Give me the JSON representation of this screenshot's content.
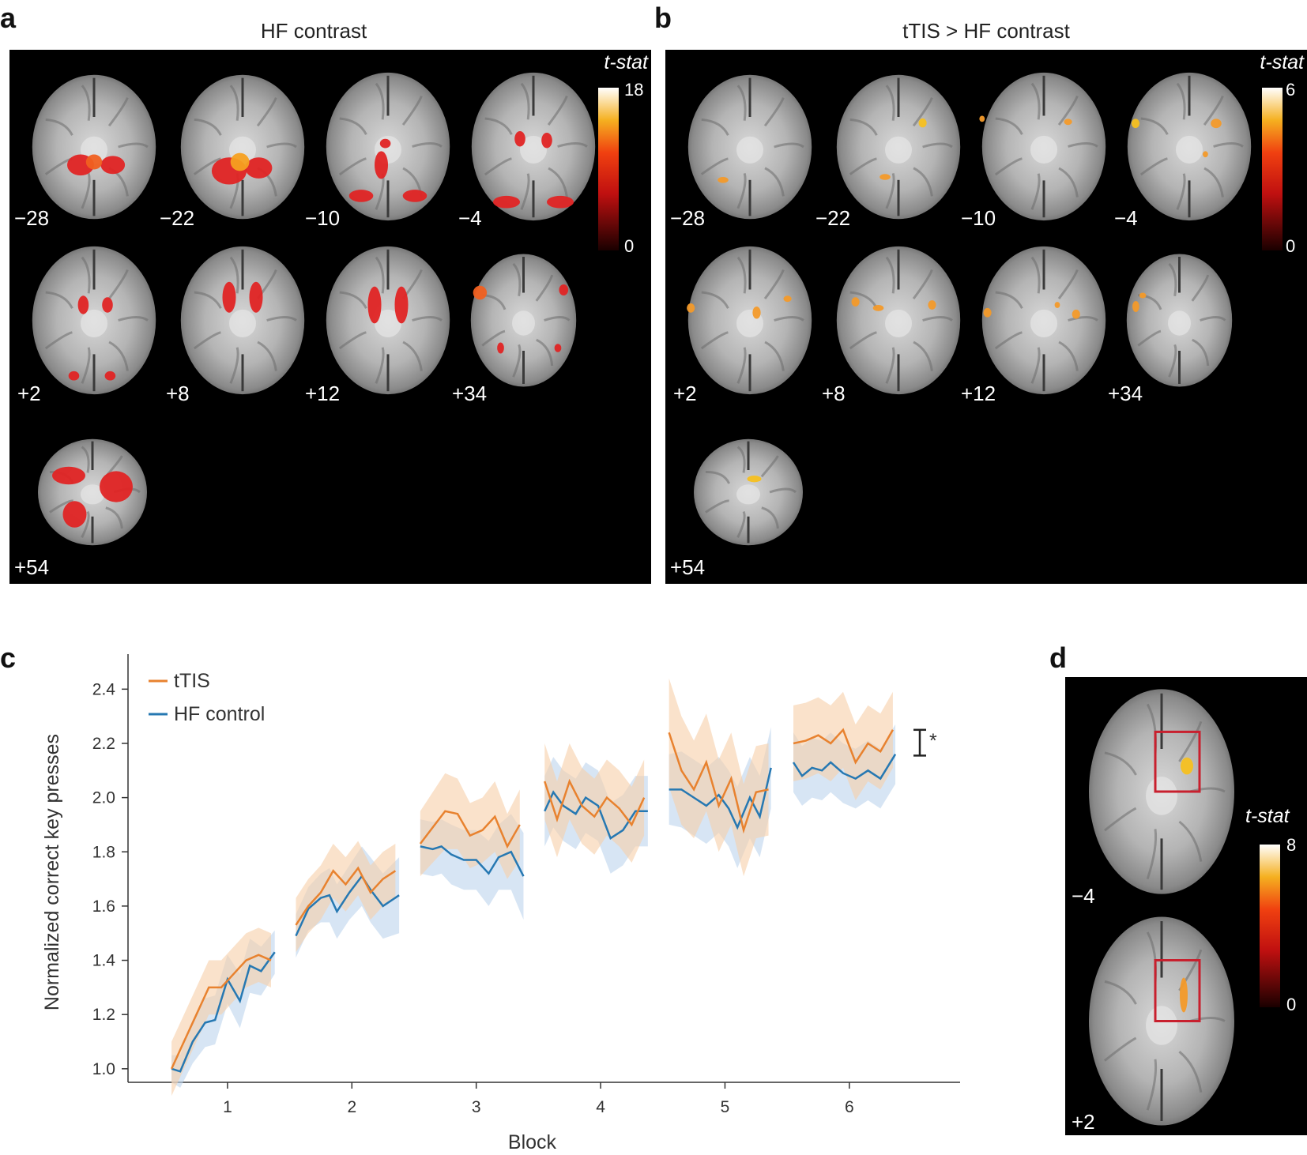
{
  "panels": {
    "a": {
      "letter": "a",
      "title": "HF contrast",
      "tstat_label": "t-stat",
      "colorbar": {
        "max": "18",
        "min": "0"
      },
      "slices": [
        {
          "label": "−28"
        },
        {
          "label": "−22"
        },
        {
          "label": "−10"
        },
        {
          "label": "−4"
        },
        {
          "label": "+2"
        },
        {
          "label": "+8"
        },
        {
          "label": "+12"
        },
        {
          "label": "+34"
        },
        {
          "label": "+54"
        }
      ]
    },
    "b": {
      "letter": "b",
      "title": "tTIS > HF contrast",
      "tstat_label": "t-stat",
      "colorbar": {
        "max": "6",
        "min": "0"
      },
      "slices": [
        {
          "label": "−28"
        },
        {
          "label": "−22"
        },
        {
          "label": "−10"
        },
        {
          "label": "−4"
        },
        {
          "label": "+2"
        },
        {
          "label": "+8"
        },
        {
          "label": "+12"
        },
        {
          "label": "+34"
        },
        {
          "label": "+54"
        }
      ]
    },
    "c": {
      "letter": "c"
    },
    "d": {
      "letter": "d",
      "tstat_label": "t-stat",
      "colorbar": {
        "max": "8",
        "min": "0"
      },
      "slices": [
        {
          "label": "−4"
        },
        {
          "label": "+2"
        }
      ]
    }
  },
  "colors": {
    "ttis": "#e8822f",
    "hf": "#2678b2",
    "ttis_band": "#f6cfa8",
    "hf_band": "#bcd3ec",
    "roi_box": "#c8202e"
  },
  "chart_data": {
    "type": "line",
    "xlabel": "Block",
    "ylabel": "Normalized correct key presses",
    "ylim": [
      0.95,
      2.5
    ],
    "yticks": [
      "1.0",
      "1.2",
      "1.4",
      "1.6",
      "1.8",
      "2.0",
      "2.2",
      "2.4"
    ],
    "xticks": [
      "1",
      "2",
      "3",
      "4",
      "5",
      "6"
    ],
    "legend": {
      "position": "top-left"
    },
    "significance": "*",
    "blocks": [
      {
        "block": 1,
        "x": [
          0.55,
          0.65,
          0.75,
          0.85,
          0.95,
          1.05,
          1.15,
          1.25,
          1.35
        ],
        "tTIS": [
          1.0,
          1.1,
          1.2,
          1.3,
          1.3,
          1.35,
          1.4,
          1.42,
          1.4
        ],
        "HF control": [
          1.0,
          0.99,
          1.1,
          1.17,
          1.18,
          1.33,
          1.25,
          1.38,
          1.36,
          1.43
        ],
        "hf_x": [
          0.55,
          0.62,
          0.72,
          0.82,
          0.9,
          1.0,
          1.1,
          1.18,
          1.27,
          1.38
        ],
        "ttis_band": [
          0.1,
          0.1,
          0.1,
          0.1,
          0.1,
          0.1,
          0.1,
          0.1,
          0.1
        ],
        "hf_band": [
          0.05,
          0.06,
          0.08,
          0.09,
          0.09,
          0.09,
          0.1,
          0.1,
          0.09,
          0.08
        ]
      },
      {
        "block": 2,
        "x": [
          1.55,
          1.65,
          1.75,
          1.85,
          1.95,
          2.05,
          2.15,
          2.25,
          2.35
        ],
        "tTIS": [
          1.53,
          1.6,
          1.65,
          1.73,
          1.68,
          1.74,
          1.65,
          1.7,
          1.73
        ],
        "HF control": [
          1.49,
          1.59,
          1.63,
          1.64,
          1.58,
          1.65,
          1.71,
          1.66,
          1.6,
          1.64
        ],
        "hf_x": [
          1.55,
          1.65,
          1.75,
          1.82,
          1.88,
          1.98,
          2.08,
          2.15,
          2.25,
          2.38
        ],
        "ttis_band": [
          0.1,
          0.1,
          0.1,
          0.1,
          0.1,
          0.1,
          0.1,
          0.1,
          0.1
        ],
        "hf_band": [
          0.08,
          0.08,
          0.09,
          0.1,
          0.1,
          0.1,
          0.11,
          0.12,
          0.12,
          0.14
        ]
      },
      {
        "block": 3,
        "x": [
          2.55,
          2.65,
          2.75,
          2.85,
          2.95,
          3.05,
          3.15,
          3.25,
          3.35
        ],
        "tTIS": [
          1.83,
          1.89,
          1.95,
          1.94,
          1.86,
          1.88,
          1.93,
          1.82,
          1.9
        ],
        "HF control": [
          1.82,
          1.81,
          1.82,
          1.79,
          1.77,
          1.77,
          1.72,
          1.78,
          1.8,
          1.71
        ],
        "hf_x": [
          2.55,
          2.65,
          2.72,
          2.8,
          2.9,
          3.0,
          3.1,
          3.18,
          3.28,
          3.38
        ],
        "ttis_band": [
          0.12,
          0.13,
          0.14,
          0.13,
          0.12,
          0.12,
          0.13,
          0.12,
          0.13
        ],
        "hf_band": [
          0.1,
          0.1,
          0.1,
          0.11,
          0.11,
          0.11,
          0.12,
          0.12,
          0.14,
          0.16
        ]
      },
      {
        "block": 4,
        "x": [
          3.55,
          3.65,
          3.75,
          3.85,
          3.95,
          4.05,
          4.15,
          4.25,
          4.35
        ],
        "tTIS": [
          2.06,
          1.92,
          2.06,
          1.97,
          1.93,
          2.0,
          1.96,
          1.9,
          2.0
        ],
        "HF control": [
          1.95,
          2.02,
          1.97,
          1.94,
          2.0,
          1.97,
          1.85,
          1.88,
          1.95,
          1.95
        ],
        "hf_x": [
          3.55,
          3.62,
          3.7,
          3.8,
          3.88,
          3.98,
          4.08,
          4.18,
          4.28,
          4.38
        ],
        "ttis_band": [
          0.14,
          0.14,
          0.14,
          0.14,
          0.14,
          0.14,
          0.14,
          0.14,
          0.14
        ],
        "hf_band": [
          0.13,
          0.13,
          0.13,
          0.13,
          0.13,
          0.13,
          0.13,
          0.13,
          0.13,
          0.13
        ]
      },
      {
        "block": 5,
        "x": [
          4.55,
          4.65,
          4.75,
          4.85,
          4.95,
          5.05,
          5.15,
          5.25,
          5.35
        ],
        "tTIS": [
          2.24,
          2.1,
          2.03,
          2.13,
          1.97,
          2.07,
          1.88,
          2.02,
          2.03
        ],
        "HF control": [
          2.03,
          2.03,
          2.0,
          1.97,
          2.01,
          1.96,
          1.89,
          2.0,
          1.93,
          2.11
        ],
        "hf_x": [
          4.55,
          4.65,
          4.75,
          4.85,
          4.95,
          5.03,
          5.1,
          5.2,
          5.28,
          5.37
        ],
        "ttis_band": [
          0.2,
          0.2,
          0.18,
          0.18,
          0.17,
          0.17,
          0.17,
          0.17,
          0.17
        ],
        "hf_band": [
          0.13,
          0.14,
          0.14,
          0.14,
          0.14,
          0.14,
          0.15,
          0.15,
          0.15,
          0.15
        ]
      },
      {
        "block": 6,
        "x": [
          5.55,
          5.65,
          5.75,
          5.85,
          5.95,
          6.05,
          6.15,
          6.25,
          6.35
        ],
        "tTIS": [
          2.2,
          2.21,
          2.23,
          2.2,
          2.25,
          2.13,
          2.2,
          2.17,
          2.25
        ],
        "HF control": [
          2.13,
          2.08,
          2.11,
          2.1,
          2.13,
          2.09,
          2.07,
          2.1,
          2.07,
          2.16
        ],
        "hf_x": [
          5.55,
          5.62,
          5.7,
          5.78,
          5.85,
          5.95,
          6.05,
          6.15,
          6.25,
          6.37
        ],
        "ttis_band": [
          0.14,
          0.14,
          0.14,
          0.14,
          0.14,
          0.14,
          0.14,
          0.14,
          0.14
        ],
        "hf_band": [
          0.11,
          0.11,
          0.11,
          0.11,
          0.11,
          0.11,
          0.11,
          0.11,
          0.11,
          0.11
        ]
      }
    ],
    "series": [
      {
        "name": "tTIS",
        "color": "#e8822f"
      },
      {
        "name": "HF control",
        "color": "#2678b2"
      }
    ]
  }
}
